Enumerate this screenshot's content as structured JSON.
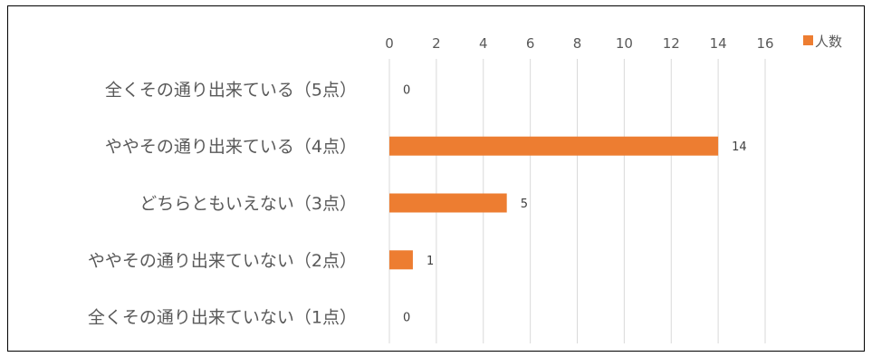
{
  "chart_data": {
    "type": "bar",
    "orientation": "horizontal",
    "categories": [
      "全くその通り出来ている（5点）",
      "ややその通り出来ている（4点）",
      "どちらともいえない（3点）",
      "ややその通り出来ていない（2点）",
      "全くその通り出来ていない（1点）"
    ],
    "series": [
      {
        "name": "人数",
        "values": [
          0,
          14,
          5,
          1,
          0
        ],
        "color": "#ED7D31"
      }
    ],
    "xlim": [
      0,
      16
    ],
    "x_ticks": [
      0,
      2,
      4,
      6,
      8,
      10,
      12,
      14,
      16
    ],
    "x_axis_position": "top",
    "grid": true,
    "grid_color": "#D9D9D9",
    "legend": "top-right",
    "data_labels": true
  }
}
